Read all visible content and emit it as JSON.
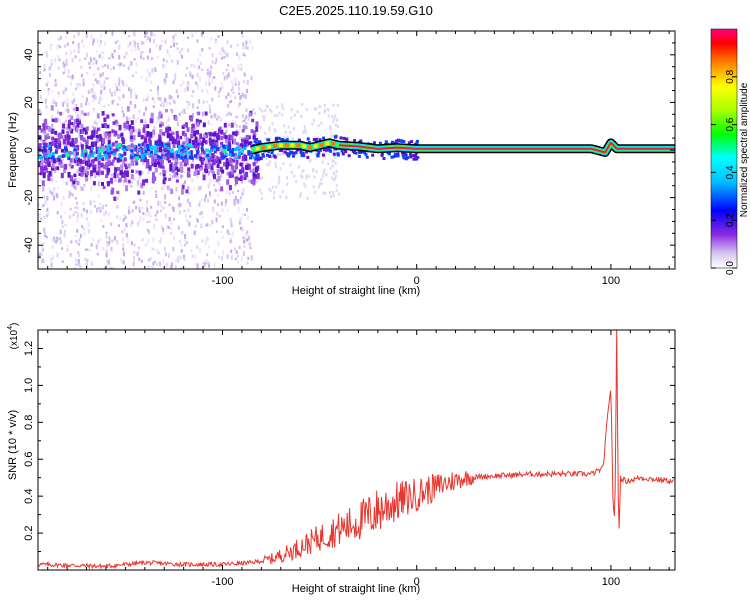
{
  "title": "C2E5.2025.110.19.59.G10",
  "chart_data": [
    {
      "type": "heatmap",
      "xlabel": "Height of straight line (km)",
      "ylabel": "Frequency (Hz)",
      "xlim": [
        -195,
        133
      ],
      "ylim": [
        -50,
        50
      ],
      "xticks": [
        -100,
        0,
        100
      ],
      "yticks": [
        -40,
        -20,
        0,
        20,
        40
      ],
      "colorbar": {
        "label": "Normalized spectral amplitude",
        "range": [
          0.0,
          1.0
        ],
        "ticks": [
          0.0,
          0.2,
          0.4,
          0.6,
          0.8
        ]
      },
      "ridge": [
        {
          "x": -195,
          "y": 1
        },
        {
          "x": -150,
          "y": 0
        },
        {
          "x": -100,
          "y": 1
        },
        {
          "x": -85,
          "y": 0
        },
        {
          "x": -80,
          "y": 1
        },
        {
          "x": -70,
          "y": 2
        },
        {
          "x": -60,
          "y": 2
        },
        {
          "x": -55,
          "y": 1
        },
        {
          "x": -45,
          "y": 3
        },
        {
          "x": -40,
          "y": 2
        },
        {
          "x": -30,
          "y": 1.5
        },
        {
          "x": -20,
          "y": 0.5
        },
        {
          "x": -10,
          "y": 1
        },
        {
          "x": 0,
          "y": 0.5
        },
        {
          "x": 50,
          "y": 0.5
        },
        {
          "x": 90,
          "y": 0.5
        },
        {
          "x": 97,
          "y": -1
        },
        {
          "x": 100,
          "y": 3
        },
        {
          "x": 103,
          "y": 0.5
        },
        {
          "x": 133,
          "y": 0.5
        }
      ]
    },
    {
      "type": "line",
      "xlabel": "Height of straight line (km)",
      "ylabel": "SNR (10 * v/v)",
      "y_multiplier": "(x10",
      "y_multiplier_exp": "4",
      "y_multiplier_close": ")",
      "xlim": [
        -195,
        133
      ],
      "ylim": [
        0,
        1.3
      ],
      "xticks": [
        -100,
        0,
        100
      ],
      "yticks": [
        0.2,
        0.4,
        0.6,
        0.8,
        1.0,
        1.2
      ],
      "color": "#e8362e",
      "series": [
        {
          "x": [
            -195,
            -160,
            -140,
            -120,
            -100,
            -85,
            -75,
            -65,
            -55,
            -45,
            -35,
            -25,
            -15,
            -5,
            5,
            15,
            25,
            40,
            60,
            80,
            90,
            96,
            98,
            100,
            101,
            102,
            103,
            104,
            105,
            108,
            115,
            133
          ],
          "y": [
            0.03,
            0.02,
            0.04,
            0.03,
            0.03,
            0.04,
            0.06,
            0.1,
            0.15,
            0.2,
            0.24,
            0.29,
            0.35,
            0.39,
            0.43,
            0.47,
            0.5,
            0.51,
            0.52,
            0.52,
            0.52,
            0.55,
            0.8,
            1.0,
            0.4,
            0.25,
            1.3,
            0.15,
            0.5,
            0.48,
            0.5,
            0.48
          ]
        }
      ]
    }
  ]
}
